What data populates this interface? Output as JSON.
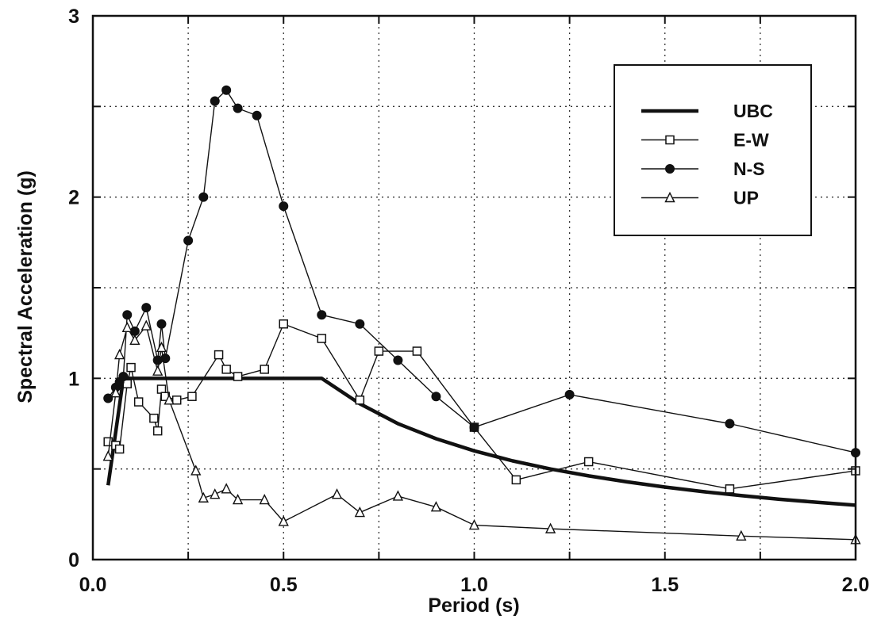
{
  "chart_data": {
    "type": "line",
    "title": "",
    "xlabel": "Period (s)",
    "ylabel": "Spectral Acceleration (g)",
    "xlim": [
      0,
      2.0
    ],
    "ylim": [
      0,
      3
    ],
    "grid": true,
    "grid_style": "dotted",
    "legend_position": "top-right",
    "x_ticks": [
      0,
      0.25,
      0.5,
      0.75,
      1.0,
      1.25,
      1.5,
      1.75,
      2.0
    ],
    "x_tick_labels": [
      "0.0",
      "",
      "0.5",
      "",
      "1.0",
      "",
      "1.5",
      "",
      "2.0"
    ],
    "y_ticks": [
      0,
      0.5,
      1,
      1.5,
      2,
      2.5,
      3
    ],
    "y_tick_labels": [
      "0",
      "",
      "1",
      "",
      "2",
      "",
      "3"
    ],
    "series": [
      {
        "name": "UBC",
        "style": "thick-line",
        "marker": "none",
        "color": "#111111",
        "x": [
          0.04,
          0.08,
          0.1,
          0.2,
          0.3,
          0.4,
          0.5,
          0.6,
          0.7,
          0.8,
          0.9,
          1.0,
          1.1,
          1.2,
          1.3,
          1.4,
          1.5,
          1.6,
          1.7,
          1.8,
          1.9,
          2.0
        ],
        "y": [
          0.41,
          1.0,
          1.0,
          1.0,
          1.0,
          1.0,
          1.0,
          1.0,
          0.86,
          0.75,
          0.667,
          0.6,
          0.545,
          0.5,
          0.462,
          0.429,
          0.4,
          0.375,
          0.353,
          0.333,
          0.316,
          0.3
        ]
      },
      {
        "name": "E-W",
        "style": "thin-line",
        "marker": "open-square",
        "color": "#111111",
        "x": [
          0.04,
          0.06,
          0.07,
          0.09,
          0.1,
          0.12,
          0.16,
          0.17,
          0.18,
          0.19,
          0.22,
          0.26,
          0.33,
          0.35,
          0.38,
          0.45,
          0.5,
          0.6,
          0.7,
          0.75,
          0.85,
          1.0,
          1.11,
          1.3,
          1.67,
          2.0
        ],
        "y": [
          0.65,
          0.63,
          0.61,
          0.97,
          1.06,
          0.87,
          0.78,
          0.71,
          0.94,
          0.9,
          0.88,
          0.9,
          1.13,
          1.05,
          1.01,
          1.05,
          1.3,
          1.22,
          0.88,
          1.15,
          1.15,
          0.73,
          0.44,
          0.54,
          0.39,
          0.49
        ]
      },
      {
        "name": "N-S",
        "style": "thin-line",
        "marker": "filled-circle",
        "color": "#111111",
        "x": [
          0.04,
          0.06,
          0.07,
          0.08,
          0.09,
          0.11,
          0.14,
          0.17,
          0.18,
          0.19,
          0.25,
          0.29,
          0.32,
          0.35,
          0.38,
          0.43,
          0.5,
          0.6,
          0.7,
          0.8,
          0.9,
          1.0,
          1.25,
          1.67,
          2.0
        ],
        "y": [
          0.89,
          0.95,
          0.98,
          1.01,
          1.35,
          1.26,
          1.39,
          1.1,
          1.3,
          1.11,
          1.76,
          2.0,
          2.53,
          2.59,
          2.49,
          2.45,
          1.95,
          1.35,
          1.3,
          1.1,
          0.9,
          0.73,
          0.91,
          0.75,
          0.59
        ]
      },
      {
        "name": "UP",
        "style": "thin-line",
        "marker": "open-triangle",
        "color": "#111111",
        "x": [
          0.04,
          0.06,
          0.07,
          0.09,
          0.11,
          0.14,
          0.17,
          0.18,
          0.2,
          0.27,
          0.29,
          0.32,
          0.35,
          0.38,
          0.45,
          0.5,
          0.64,
          0.7,
          0.8,
          0.9,
          1.0,
          1.2,
          1.7,
          2.0
        ],
        "y": [
          0.57,
          0.92,
          1.13,
          1.28,
          1.21,
          1.29,
          1.04,
          1.17,
          0.88,
          0.49,
          0.34,
          0.36,
          0.39,
          0.33,
          0.33,
          0.21,
          0.36,
          0.26,
          0.35,
          0.29,
          0.19,
          0.17,
          0.13,
          0.11
        ]
      }
    ]
  }
}
